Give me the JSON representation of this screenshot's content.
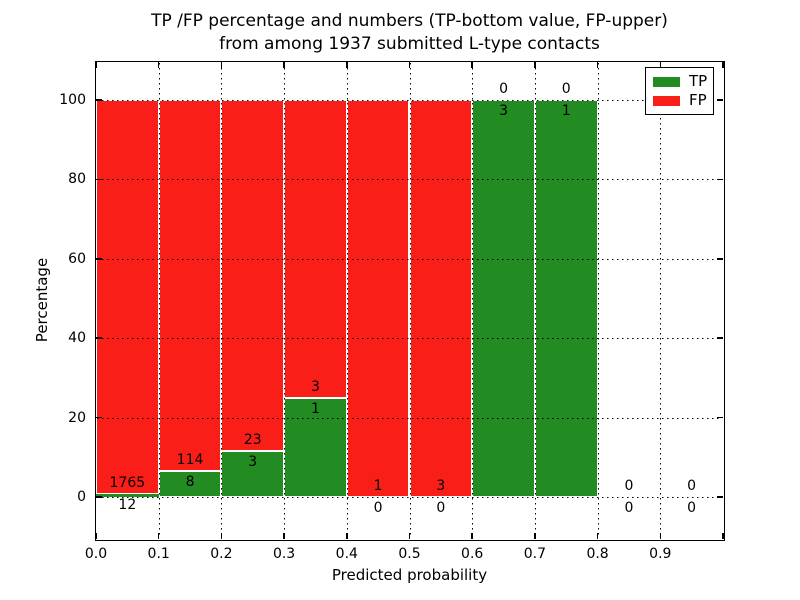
{
  "title": {
    "line1": "TP /FP percentage and numbers (TP-bottom value, FP-upper)",
    "line2": "from among 1937 submitted L-type contacts"
  },
  "axes": {
    "xlabel": "Predicted probability",
    "ylabel": "Percentage",
    "x_tick_labels": [
      "0.0",
      "0.1",
      "0.2",
      "0.3",
      "0.4",
      "0.5",
      "0.6",
      "0.7",
      "0.8",
      "0.9"
    ],
    "y_tick_labels": [
      "0",
      "20",
      "40",
      "60",
      "80",
      "100"
    ]
  },
  "legend": {
    "items": [
      {
        "label": "TP",
        "color": "#228b22"
      },
      {
        "label": "FP",
        "color": "#fa1e19"
      }
    ]
  },
  "colors": {
    "tp": "#228b22",
    "fp": "#fa1e19",
    "grid": "#000000",
    "bar_edge": "#ffffff",
    "background": "#ffffff"
  },
  "chart_data": {
    "type": "bar",
    "stacked": true,
    "normalized": "percent",
    "title": "TP /FP percentage and numbers (TP-bottom value, FP-upper) from among 1937 submitted L-type contacts",
    "xlabel": "Predicted probability",
    "ylabel": "Percentage",
    "xlim": [
      0.0,
      1.0
    ],
    "ylim": [
      -11,
      110
    ],
    "grid": "dotted",
    "legend_position": "upper right",
    "total_submitted": 1937,
    "bin_width": 0.1,
    "x_ticks": [
      0.0,
      0.1,
      0.2,
      0.3,
      0.4,
      0.5,
      0.6,
      0.7,
      0.8,
      0.9
    ],
    "x_tick_positions": [
      0.0,
      0.1,
      0.2,
      0.3,
      0.4,
      0.5,
      0.6,
      0.7,
      0.8,
      0.9,
      1.0
    ],
    "y_ticks": [
      0,
      20,
      40,
      60,
      80,
      100
    ],
    "bins": [
      {
        "x0": 0.0,
        "x1": 0.1,
        "tp": 12,
        "fp": 1765
      },
      {
        "x0": 0.1,
        "x1": 0.2,
        "tp": 8,
        "fp": 114
      },
      {
        "x0": 0.2,
        "x1": 0.3,
        "tp": 3,
        "fp": 23
      },
      {
        "x0": 0.3,
        "x1": 0.4,
        "tp": 1,
        "fp": 3
      },
      {
        "x0": 0.4,
        "x1": 0.5,
        "tp": 0,
        "fp": 1
      },
      {
        "x0": 0.5,
        "x1": 0.6,
        "tp": 0,
        "fp": 3
      },
      {
        "x0": 0.6,
        "x1": 0.7,
        "tp": 3,
        "fp": 0
      },
      {
        "x0": 0.7,
        "x1": 0.8,
        "tp": 1,
        "fp": 0
      },
      {
        "x0": 0.8,
        "x1": 0.9,
        "tp": 0,
        "fp": 0
      },
      {
        "x0": 0.9,
        "x1": 1.0,
        "tp": 0,
        "fp": 0
      }
    ],
    "series": [
      {
        "name": "TP",
        "color": "#228b22",
        "values_pct": [
          0.68,
          6.56,
          11.54,
          25.0,
          0,
          0,
          100,
          100,
          0,
          0
        ]
      },
      {
        "name": "FP",
        "color": "#fa1e19",
        "values_pct": [
          99.32,
          93.44,
          88.46,
          75.0,
          100,
          100,
          0,
          0,
          0,
          0
        ]
      }
    ]
  }
}
